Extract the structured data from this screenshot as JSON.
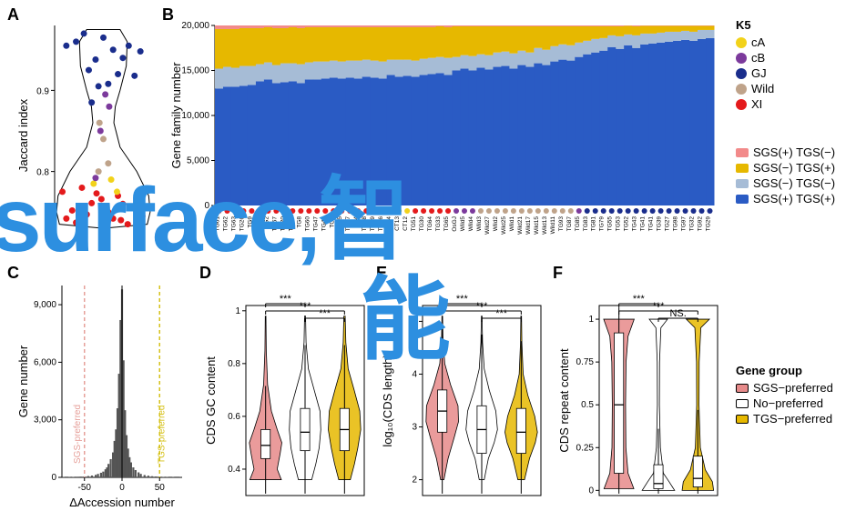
{
  "panels": {
    "A": "A",
    "B": "B",
    "C": "C",
    "D": "D",
    "E": "E",
    "F": "F"
  },
  "k5_legend": {
    "title": "K5",
    "items": [
      {
        "label": "cA",
        "color": "#f2d21a"
      },
      {
        "label": "cB",
        "color": "#7c3a9c"
      },
      {
        "label": "GJ",
        "color": "#1a2d8c"
      },
      {
        "label": "Wild",
        "color": "#bfa38a"
      },
      {
        "label": "XI",
        "color": "#e41a1c"
      }
    ]
  },
  "stack_legend": {
    "items": [
      {
        "label": "SGS(+) TGS(−)",
        "color": "#f28a8a"
      },
      {
        "label": "SGS(−) TGS(+)",
        "color": "#e6b800"
      },
      {
        "label": "SGS(−) TGS(−)",
        "color": "#a6bcd6"
      },
      {
        "label": "SGS(+) TGS(+)",
        "color": "#2a5bc4"
      }
    ]
  },
  "gene_group_legend": {
    "title": "Gene group",
    "items": [
      {
        "label": "SGS−preferred",
        "color": "#e68a8a",
        "outline": "#000"
      },
      {
        "label": "No−preferred",
        "color": "#ffffff",
        "outline": "#000"
      },
      {
        "label": "TGS−preferred",
        "color": "#e6b800",
        "outline": "#000"
      }
    ]
  },
  "panelA": {
    "ylabel": "Jaccard index",
    "ymin": 0.72,
    "ymax": 0.98,
    "yticks": [
      0.8,
      0.9
    ],
    "points": [
      {
        "x": 0.08,
        "y": 0.775,
        "c": "#e41a1c"
      },
      {
        "x": 0.12,
        "y": 0.742,
        "c": "#e41a1c"
      },
      {
        "x": 0.18,
        "y": 0.752,
        "c": "#e41a1c"
      },
      {
        "x": 0.22,
        "y": 0.737,
        "c": "#e41a1c"
      },
      {
        "x": 0.28,
        "y": 0.78,
        "c": "#e41a1c"
      },
      {
        "x": 0.33,
        "y": 0.747,
        "c": "#e41a1c"
      },
      {
        "x": 0.38,
        "y": 0.761,
        "c": "#e41a1c"
      },
      {
        "x": 0.43,
        "y": 0.773,
        "c": "#e41a1c"
      },
      {
        "x": 0.48,
        "y": 0.766,
        "c": "#e41a1c"
      },
      {
        "x": 0.55,
        "y": 0.75,
        "c": "#e41a1c"
      },
      {
        "x": 0.6,
        "y": 0.742,
        "c": "#e41a1c"
      },
      {
        "x": 0.65,
        "y": 0.77,
        "c": "#e41a1c"
      },
      {
        "x": 0.7,
        "y": 0.76,
        "c": "#e41a1c"
      },
      {
        "x": 0.75,
        "y": 0.735,
        "c": "#e41a1c"
      },
      {
        "x": 0.82,
        "y": 0.755,
        "c": "#e41a1c"
      },
      {
        "x": 0.86,
        "y": 0.768,
        "c": "#e41a1c"
      },
      {
        "x": 0.9,
        "y": 0.745,
        "c": "#e41a1c"
      },
      {
        "x": 0.3,
        "y": 0.745,
        "c": "#e41a1c"
      },
      {
        "x": 0.5,
        "y": 0.738,
        "c": "#e41a1c"
      },
      {
        "x": 0.68,
        "y": 0.74,
        "c": "#e41a1c"
      },
      {
        "x": 0.4,
        "y": 0.785,
        "c": "#f2d21a"
      },
      {
        "x": 0.58,
        "y": 0.79,
        "c": "#f2d21a"
      },
      {
        "x": 0.64,
        "y": 0.775,
        "c": "#f2d21a"
      },
      {
        "x": 0.45,
        "y": 0.8,
        "c": "#bfa38a"
      },
      {
        "x": 0.5,
        "y": 0.84,
        "c": "#bfa38a"
      },
      {
        "x": 0.55,
        "y": 0.81,
        "c": "#bfa38a"
      },
      {
        "x": 0.46,
        "y": 0.86,
        "c": "#bfa38a"
      },
      {
        "x": 0.52,
        "y": 0.895,
        "c": "#7c3a9c"
      },
      {
        "x": 0.47,
        "y": 0.85,
        "c": "#7c3a9c"
      },
      {
        "x": 0.42,
        "y": 0.792,
        "c": "#7c3a9c"
      },
      {
        "x": 0.56,
        "y": 0.88,
        "c": "#7c3a9c"
      },
      {
        "x": 0.12,
        "y": 0.955,
        "c": "#1a2d8c"
      },
      {
        "x": 0.22,
        "y": 0.96,
        "c": "#1a2d8c"
      },
      {
        "x": 0.3,
        "y": 0.97,
        "c": "#1a2d8c"
      },
      {
        "x": 0.35,
        "y": 0.925,
        "c": "#1a2d8c"
      },
      {
        "x": 0.42,
        "y": 0.938,
        "c": "#1a2d8c"
      },
      {
        "x": 0.5,
        "y": 0.965,
        "c": "#1a2d8c"
      },
      {
        "x": 0.55,
        "y": 0.908,
        "c": "#1a2d8c"
      },
      {
        "x": 0.6,
        "y": 0.95,
        "c": "#1a2d8c"
      },
      {
        "x": 0.65,
        "y": 0.92,
        "c": "#1a2d8c"
      },
      {
        "x": 0.7,
        "y": 0.94,
        "c": "#1a2d8c"
      },
      {
        "x": 0.76,
        "y": 0.955,
        "c": "#1a2d8c"
      },
      {
        "x": 0.82,
        "y": 0.918,
        "c": "#1a2d8c"
      },
      {
        "x": 0.88,
        "y": 0.948,
        "c": "#1a2d8c"
      },
      {
        "x": 0.45,
        "y": 0.905,
        "c": "#1a2d8c"
      },
      {
        "x": 0.38,
        "y": 0.885,
        "c": "#1a2d8c"
      }
    ]
  },
  "panelB": {
    "ylabel": "Gene family number",
    "ymax": 20000,
    "yticks": [
      0,
      5000,
      10000,
      15000,
      20000
    ],
    "yticklabels": [
      "0",
      "5,000",
      "10,000",
      "15,000",
      "20,000"
    ],
    "dot_colors_seq": [
      "#e41a1c",
      "#e41a1c",
      "#e41a1c",
      "#e41a1c",
      "#e41a1c",
      "#e41a1c",
      "#e41a1c",
      "#e41a1c",
      "#e41a1c",
      "#e41a1c",
      "#e41a1c",
      "#e41a1c",
      "#e41a1c",
      "#e41a1c",
      "#e41a1c",
      "#e41a1c",
      "#e41a1c",
      "#e41a1c",
      "#e41a1c",
      "#e41a1c",
      "#e41a1c",
      "#f2d21a",
      "#f2d21a",
      "#f2d21a",
      "#e41a1c",
      "#e41a1c",
      "#e41a1c",
      "#e41a1c",
      "#e41a1c",
      "#7c3a9c",
      "#7c3a9c",
      "#7c3a9c",
      "#bfa38a",
      "#bfa38a",
      "#bfa38a",
      "#bfa38a",
      "#bfa38a",
      "#bfa38a",
      "#bfa38a",
      "#bfa38a",
      "#bfa38a",
      "#bfa38a",
      "#bfa38a",
      "#bfa38a",
      "#7c3a9c",
      "#1a2d8c",
      "#1a2d8c",
      "#1a2d8c",
      "#1a2d8c",
      "#1a2d8c",
      "#1a2d8c",
      "#1a2d8c",
      "#1a2d8c",
      "#1a2d8c",
      "#1a2d8c",
      "#1a2d8c",
      "#1a2d8c",
      "#1a2d8c",
      "#1a2d8c",
      "#1a2d8c",
      "#1a2d8c"
    ],
    "xcat": [
      "TG61",
      "TG62",
      "TG63",
      "TG26",
      "TG9",
      "TG49",
      "TG2",
      "TG67",
      "TG20",
      "TG70",
      "TG8",
      "TG60",
      "TG47",
      "TG45",
      "TG1",
      "TG15",
      "TG17",
      "TG4",
      "TG18",
      "TG69",
      "TG66",
      "CT14",
      "CT13",
      "CT12",
      "TG51",
      "TG30",
      "TG64",
      "TG33",
      "TG65",
      "OsGJ",
      "Wild5",
      "Wild4",
      "Wild3",
      "Wild27",
      "Wild2",
      "Wild25",
      "Wild1",
      "Wild21",
      "Wild17",
      "Wild15",
      "Wild13",
      "Wild11",
      "TG93",
      "TG87",
      "TG85",
      "TG83",
      "TG81",
      "TG79",
      "TG55",
      "TG53",
      "TG52",
      "TG43",
      "TG41",
      "TG41",
      "TG39",
      "TG27",
      "TG98",
      "TG97",
      "TG32",
      "TG92",
      "TG29"
    ],
    "stacks": {
      "blue_top_base": [
        13000,
        13200,
        13200,
        13300,
        13400,
        13800,
        14000,
        13600,
        13700,
        13800,
        13600,
        14000,
        14000,
        14100,
        14200,
        14100,
        14200,
        14100,
        14300,
        14200,
        14100,
        14500,
        14300,
        14400,
        14300,
        14500,
        14600,
        14700,
        14500,
        15000,
        15200,
        15000,
        15300,
        15100,
        15400,
        15500,
        15200,
        15600,
        15400,
        15800,
        15600,
        16000,
        16200,
        16100,
        16500,
        16800,
        17000,
        17200,
        17600,
        17400,
        17800,
        17500,
        17900,
        18000,
        18100,
        18200,
        18300,
        18400,
        18300,
        18500,
        18600
      ],
      "grey_top": [
        15200,
        15400,
        15300,
        15500,
        15500,
        15700,
        15900,
        15600,
        15800,
        15800,
        15700,
        15900,
        16000,
        16000,
        16100,
        16000,
        16100,
        16100,
        16200,
        16100,
        16000,
        16200,
        16200,
        16200,
        16100,
        16300,
        16400,
        16500,
        16400,
        16500,
        16700,
        16600,
        16800,
        16700,
        17000,
        17100,
        16900,
        17200,
        17000,
        17500,
        17300,
        17700,
        17900,
        17800,
        18100,
        18300,
        18500,
        18600,
        18900,
        18800,
        19000,
        18900,
        19100,
        19100,
        19200,
        19300,
        19300,
        19400,
        19300,
        19500,
        19500
      ],
      "yellow_top": [
        19600,
        19600,
        19600,
        19700,
        19700,
        19700,
        19800,
        19700,
        19700,
        19800,
        19700,
        19800,
        19800,
        19800,
        19800,
        19800,
        19800,
        19800,
        19800,
        19800,
        19800,
        19800,
        19800,
        19800,
        19800,
        19800,
        19800,
        19900,
        19800,
        19900,
        19900,
        19900,
        19900,
        19900,
        19900,
        19900,
        19900,
        19900,
        19900,
        19900,
        19900,
        19900,
        19900,
        19900,
        19900,
        19900,
        19900,
        19900,
        19900,
        19900,
        19950,
        19900,
        19950,
        19950,
        19950,
        19950,
        19950,
        19950,
        19950,
        19950,
        19950
      ],
      "pink_top": 20000
    }
  },
  "panelC": {
    "ylabel": "Gene number",
    "xlabel": "ΔAccession number",
    "xticks": [
      -50,
      0,
      50
    ],
    "yticks": [
      0,
      3000,
      6000,
      9000
    ],
    "yticklabels": [
      "0",
      "3,000",
      "6,000",
      "9,000"
    ],
    "sgs_label": "SGS-preferred",
    "tgs_label": "TGS-preferred",
    "sgs_x": -50,
    "tgs_x": 50,
    "sgs_color": "#e6a09a",
    "tgs_color": "#d6c21a",
    "bars": [
      [
        -78,
        20
      ],
      [
        -70,
        15
      ],
      [
        -65,
        25
      ],
      [
        -60,
        33
      ],
      [
        -55,
        40
      ],
      [
        -50,
        50
      ],
      [
        -45,
        70
      ],
      [
        -40,
        95
      ],
      [
        -35,
        130
      ],
      [
        -32,
        180
      ],
      [
        -28,
        240
      ],
      [
        -25,
        300
      ],
      [
        -22,
        420
      ],
      [
        -20,
        520
      ],
      [
        -18,
        700
      ],
      [
        -15,
        950
      ],
      [
        -12,
        1300
      ],
      [
        -10,
        1900
      ],
      [
        -8,
        2500
      ],
      [
        -6,
        3600
      ],
      [
        -4,
        5400
      ],
      [
        -2,
        8200
      ],
      [
        0,
        9800
      ],
      [
        2,
        6100
      ],
      [
        4,
        3500
      ],
      [
        6,
        2200
      ],
      [
        8,
        1500
      ],
      [
        10,
        1050
      ],
      [
        12,
        780
      ],
      [
        15,
        520
      ],
      [
        18,
        380
      ],
      [
        22,
        260
      ],
      [
        25,
        180
      ],
      [
        30,
        120
      ],
      [
        35,
        90
      ],
      [
        40,
        60
      ],
      [
        45,
        45
      ],
      [
        50,
        34
      ],
      [
        55,
        25
      ],
      [
        60,
        20
      ],
      [
        68,
        15
      ],
      [
        78,
        12
      ]
    ]
  },
  "violins": {
    "groups": [
      "SGS",
      "No",
      "TGS"
    ],
    "colors": {
      "SGS": "#e68a8a",
      "No": "#ffffff",
      "TGS": "#e6b800"
    },
    "D": {
      "ylabel": "CDS GC content",
      "yticks": [
        0.4,
        0.6,
        0.8,
        1.0
      ],
      "ylim": [
        0.3,
        1.02
      ],
      "sig": [
        [
          "***",
          0,
          1
        ],
        [
          "***",
          0,
          2
        ],
        [
          "***",
          1,
          2
        ]
      ],
      "medians": [
        0.49,
        0.54,
        0.55
      ],
      "q1": [
        0.44,
        0.47,
        0.47
      ],
      "q3": [
        0.55,
        0.63,
        0.63
      ],
      "widths": [
        [
          0.36,
          0.95
        ],
        [
          0.4,
          0.7
        ],
        [
          0.46,
          0.88
        ],
        [
          0.5,
          0.98
        ],
        [
          0.55,
          0.7
        ],
        [
          0.62,
          0.35
        ],
        [
          0.72,
          0.12
        ],
        [
          0.85,
          0.04
        ],
        [
          0.98,
          0.02
        ]
      ],
      "widthsN": [
        [
          0.36,
          0.4
        ],
        [
          0.42,
          0.65
        ],
        [
          0.48,
          0.85
        ],
        [
          0.55,
          0.95
        ],
        [
          0.62,
          0.9
        ],
        [
          0.7,
          0.55
        ],
        [
          0.78,
          0.2
        ],
        [
          0.88,
          0.06
        ],
        [
          0.98,
          0.03
        ]
      ],
      "widthsT": [
        [
          0.36,
          0.35
        ],
        [
          0.42,
          0.6
        ],
        [
          0.48,
          0.8
        ],
        [
          0.55,
          0.98
        ],
        [
          0.62,
          0.92
        ],
        [
          0.7,
          0.58
        ],
        [
          0.78,
          0.22
        ],
        [
          0.88,
          0.08
        ],
        [
          0.98,
          0.04
        ]
      ]
    },
    "E": {
      "ylabel": "log₁₀(CDS length)",
      "yticks": [
        2,
        3,
        4,
        5
      ],
      "ylim": [
        1.7,
        5.3
      ],
      "sig": [
        [
          "***",
          0,
          1
        ],
        [
          "***",
          0,
          2
        ],
        [
          "***",
          1,
          2
        ]
      ],
      "medians": [
        3.3,
        2.95,
        2.9
      ],
      "q1": [
        2.9,
        2.5,
        2.5
      ],
      "q3": [
        3.7,
        3.4,
        3.35
      ],
      "widths": [
        [
          2.0,
          0.1
        ],
        [
          2.4,
          0.35
        ],
        [
          2.8,
          0.72
        ],
        [
          3.1,
          0.98
        ],
        [
          3.4,
          0.95
        ],
        [
          3.8,
          0.5
        ],
        [
          4.2,
          0.15
        ],
        [
          4.7,
          0.04
        ],
        [
          5.1,
          0.02
        ]
      ],
      "widthsN": [
        [
          2.0,
          0.15
        ],
        [
          2.4,
          0.4
        ],
        [
          2.7,
          0.75
        ],
        [
          2.95,
          0.95
        ],
        [
          3.3,
          0.85
        ],
        [
          3.7,
          0.45
        ],
        [
          4.1,
          0.15
        ],
        [
          4.6,
          0.05
        ],
        [
          5.1,
          0.02
        ]
      ],
      "widthsT": [
        [
          2.0,
          0.2
        ],
        [
          2.4,
          0.5
        ],
        [
          2.7,
          0.85
        ],
        [
          2.9,
          0.98
        ],
        [
          3.2,
          0.82
        ],
        [
          3.6,
          0.4
        ],
        [
          4.0,
          0.12
        ],
        [
          4.6,
          0.04
        ],
        [
          5.1,
          0.02
        ]
      ]
    },
    "F": {
      "ylabel": "CDS repeat content",
      "yticks": [
        0.0,
        0.25,
        0.5,
        0.75,
        1.0
      ],
      "ylim": [
        -0.03,
        1.08
      ],
      "sig": [
        [
          "***",
          0,
          1
        ],
        [
          "***",
          0,
          2
        ],
        [
          "NS.",
          1,
          2
        ]
      ],
      "medians": [
        0.5,
        0.04,
        0.07
      ],
      "q1": [
        0.1,
        0.01,
        0.02
      ],
      "q3": [
        0.92,
        0.15,
        0.2
      ],
      "widths": [
        [
          0.01,
          0.9
        ],
        [
          0.1,
          0.55
        ],
        [
          0.25,
          0.42
        ],
        [
          0.5,
          0.4
        ],
        [
          0.75,
          0.43
        ],
        [
          0.9,
          0.55
        ],
        [
          1.0,
          0.92
        ]
      ],
      "widthsN": [
        [
          0.0,
          0.98
        ],
        [
          0.05,
          0.65
        ],
        [
          0.1,
          0.3
        ],
        [
          0.25,
          0.12
        ],
        [
          0.5,
          0.06
        ],
        [
          0.75,
          0.07
        ],
        [
          0.95,
          0.15
        ],
        [
          1.0,
          0.55
        ]
      ],
      "widthsT": [
        [
          0.0,
          0.95
        ],
        [
          0.05,
          0.88
        ],
        [
          0.12,
          0.45
        ],
        [
          0.25,
          0.15
        ],
        [
          0.5,
          0.07
        ],
        [
          0.75,
          0.08
        ],
        [
          0.95,
          0.18
        ],
        [
          1.0,
          0.7
        ]
      ]
    }
  },
  "overlay": {
    "text1": "surface,智",
    "text2": "能"
  }
}
